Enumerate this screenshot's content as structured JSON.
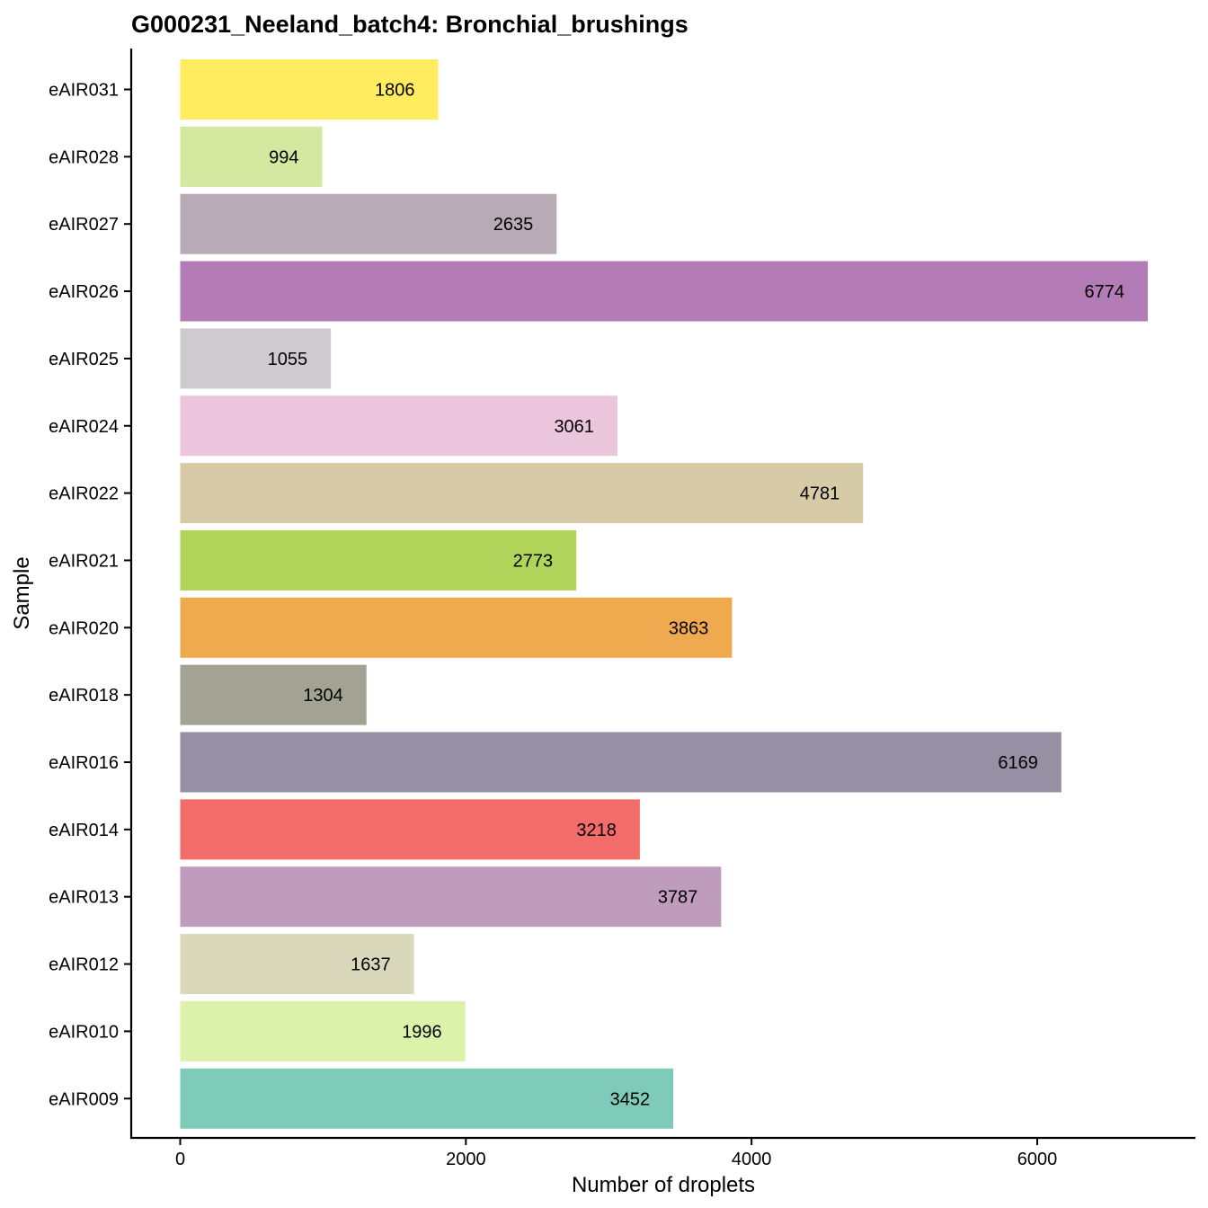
{
  "chart_data": {
    "type": "bar",
    "orientation": "horizontal",
    "title": "G000231_Neeland_batch4: Bronchial_brushings",
    "xlabel": "Number of droplets",
    "ylabel": "Sample",
    "xlim": [
      -340,
      7100
    ],
    "xticks": [
      0,
      2000,
      4000,
      6000
    ],
    "xtick_labels": [
      "0",
      "2000",
      "4000",
      "6000"
    ],
    "categories": [
      "eAIR031",
      "eAIR028",
      "eAIR027",
      "eAIR026",
      "eAIR025",
      "eAIR024",
      "eAIR022",
      "eAIR021",
      "eAIR020",
      "eAIR018",
      "eAIR016",
      "eAIR014",
      "eAIR013",
      "eAIR012",
      "eAIR010",
      "eAIR009"
    ],
    "values": [
      1806,
      994,
      2635,
      6774,
      1055,
      3061,
      4781,
      2773,
      3863,
      1304,
      6169,
      3218,
      3787,
      1637,
      1996,
      3452
    ],
    "colors": [
      "#FFEC5F",
      "#D4E99F",
      "#B8ABB5",
      "#B37CB6",
      "#CFCAD0",
      "#EBC5DC",
      "#D6CBA6",
      "#B1D45B",
      "#EFAA50",
      "#A3A394",
      "#978FA4",
      "#F26C69",
      "#C09CBC",
      "#D9D8BB",
      "#DBF2AB",
      "#7FCBBA"
    ],
    "grid": false,
    "legend": "none"
  }
}
